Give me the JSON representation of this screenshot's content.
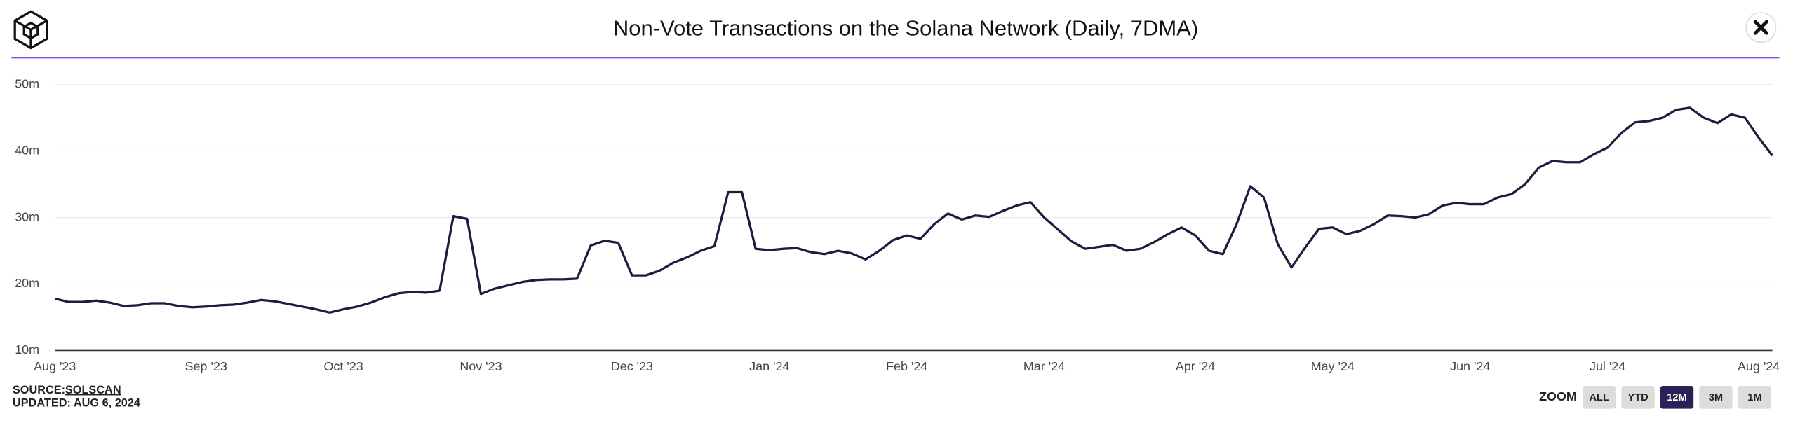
{
  "chart_data": {
    "type": "line",
    "title": "Non-Vote Transactions on the Solana Network (Daily, 7DMA)",
    "categories": [
      "Aug '23",
      null,
      null,
      null,
      null,
      null,
      null,
      null,
      null,
      null,
      null,
      "Sep '23",
      null,
      null,
      null,
      null,
      null,
      null,
      null,
      null,
      null,
      "Oct '23",
      null,
      null,
      null,
      null,
      null,
      null,
      null,
      null,
      null,
      "Nov '23",
      null,
      null,
      null,
      null,
      null,
      null,
      null,
      null,
      null,
      null,
      "Dec '23",
      null,
      null,
      null,
      null,
      null,
      null,
      null,
      null,
      null,
      "Jan '24",
      null,
      null,
      null,
      null,
      null,
      null,
      null,
      null,
      null,
      "Feb '24",
      null,
      null,
      null,
      null,
      null,
      null,
      null,
      null,
      null,
      "Mar '24",
      null,
      null,
      null,
      null,
      null,
      null,
      null,
      null,
      null,
      null,
      "Apr '24",
      null,
      null,
      null,
      null,
      null,
      null,
      null,
      null,
      null,
      "May '24",
      null,
      null,
      null,
      null,
      null,
      null,
      null,
      null,
      null,
      "Jun '24",
      null,
      null,
      null,
      null,
      null,
      null,
      null,
      null,
      null,
      "Jul '24",
      null,
      null,
      null,
      null,
      null,
      null,
      null,
      null,
      null,
      null,
      "Aug '24",
      null
    ],
    "series": [
      {
        "name": "Non-Vote Transactions",
        "color": "#1f1a40",
        "values": [
          17.8,
          17.3,
          17.3,
          17.5,
          17.2,
          16.7,
          16.8,
          17.1,
          17.1,
          16.7,
          16.5,
          16.6,
          16.8,
          16.9,
          17.2,
          17.6,
          17.4,
          17.0,
          16.6,
          16.2,
          15.7,
          16.2,
          16.6,
          17.2,
          18.0,
          18.6,
          18.8,
          18.7,
          19.0,
          30.2,
          29.8,
          18.5,
          19.3,
          19.8,
          20.3,
          20.6,
          20.7,
          20.7,
          20.8,
          25.8,
          26.5,
          26.2,
          21.3,
          21.3,
          22.0,
          23.2,
          24.0,
          25.0,
          25.7,
          33.8,
          33.8,
          25.3,
          25.1,
          25.3,
          25.4,
          24.8,
          24.5,
          25.0,
          24.6,
          23.7,
          25.0,
          26.6,
          27.3,
          26.8,
          29.0,
          30.6,
          29.7,
          30.3,
          30.1,
          31.0,
          31.8,
          32.3,
          30.0,
          28.2,
          26.4,
          25.3,
          25.6,
          25.9,
          25.0,
          25.3,
          26.3,
          27.5,
          28.5,
          27.3,
          25.0,
          24.5,
          29.0,
          34.7,
          33.0,
          26.0,
          22.5,
          25.5,
          28.3,
          28.5,
          27.5,
          28.0,
          29.0,
          30.3,
          30.2,
          30.0,
          30.5,
          31.8,
          32.2,
          32.0,
          32.0,
          33.0,
          33.5,
          35.0,
          37.5,
          38.5,
          38.3,
          38.3,
          39.5,
          40.5,
          42.7,
          44.3,
          44.5,
          45.0,
          46.2,
          46.5,
          45.0,
          44.2,
          45.5,
          45.0,
          42.0,
          39.3
        ]
      }
    ],
    "ylim": [
      10,
      50
    ],
    "yticks": [
      {
        "value": 10,
        "label": "10m"
      },
      {
        "value": 20,
        "label": "20m"
      },
      {
        "value": 30,
        "label": "30m"
      },
      {
        "value": 40,
        "label": "40m"
      },
      {
        "value": 50,
        "label": "50m"
      }
    ],
    "grid": true
  },
  "footer": {
    "source_label": "SOURCE:",
    "source": "SOLSCAN",
    "updated": "UPDATED: AUG 6, 2024"
  },
  "zoom": {
    "label": "ZOOM",
    "options": [
      "ALL",
      "YTD",
      "12M",
      "3M",
      "1M"
    ],
    "active": "12M"
  }
}
